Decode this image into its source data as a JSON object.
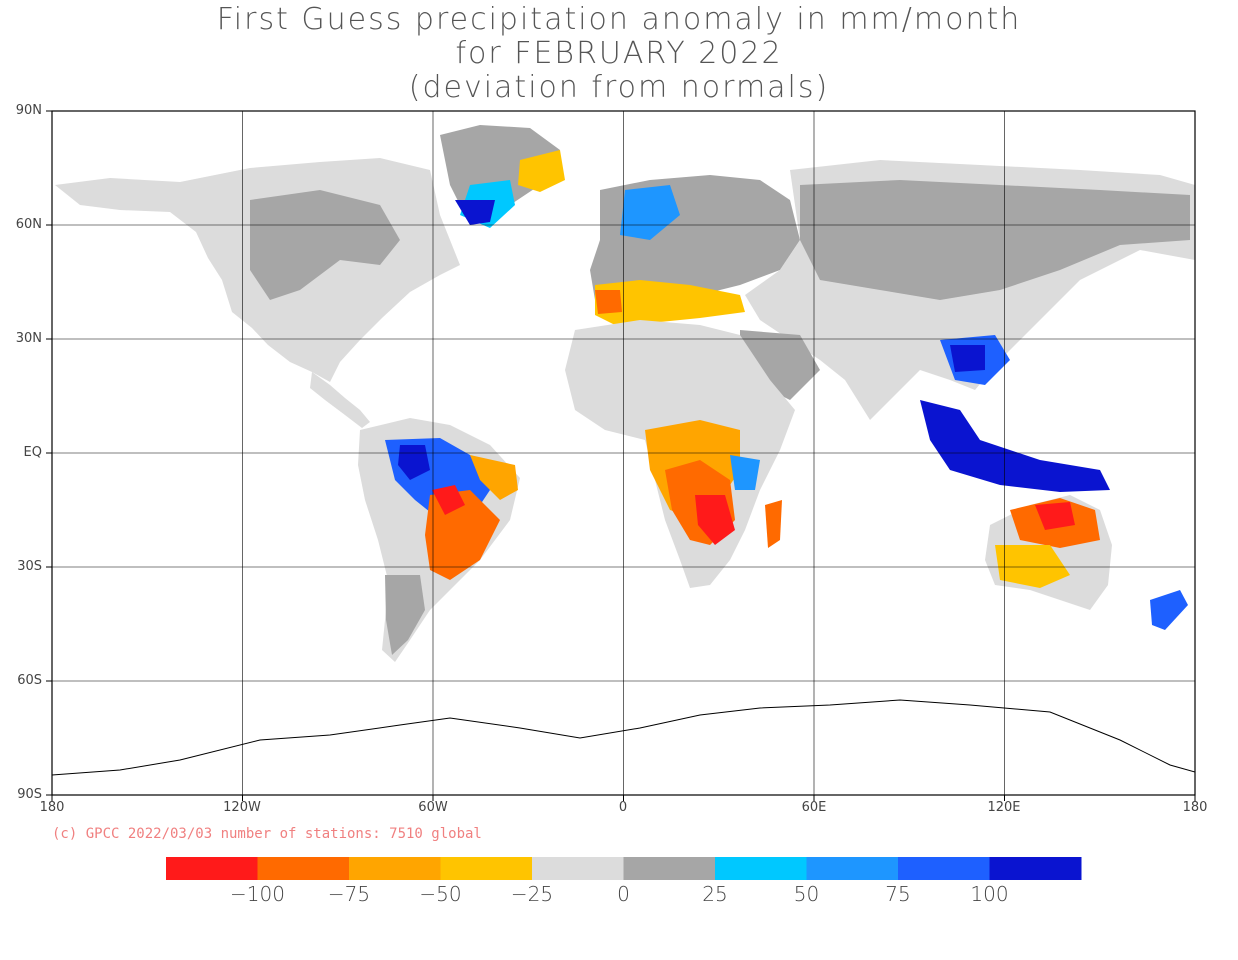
{
  "title": {
    "line1": "First Guess precipitation anomaly in mm/month",
    "line2": "for FEBRUARY 2022",
    "line3": "(deviation from normals)"
  },
  "lat_labels": [
    "90N",
    "60N",
    "30N",
    "EQ",
    "30S",
    "60S",
    "90S"
  ],
  "lon_labels": [
    "180",
    "120W",
    "60W",
    "0",
    "60E",
    "120E",
    "180"
  ],
  "copyright": "(c) GPCC 2022/03/03 number of stations: 7510 global",
  "colorbar": {
    "colors": [
      "#ff1a1a",
      "#ff6a00",
      "#ffa500",
      "#ffc400",
      "#dcdcdc",
      "#a6a6a6",
      "#00c8ff",
      "#1e96ff",
      "#1e60ff",
      "#0a14d0"
    ],
    "labels": [
      "−100",
      "−75",
      "−50",
      "−25",
      "0",
      "25",
      "50",
      "75",
      "100"
    ]
  },
  "colors": {
    "frame": "#000000",
    "coast": "#000000",
    "land_normal_light": "#dcdcdc",
    "land_normal_dark": "#a6a6a6"
  }
}
